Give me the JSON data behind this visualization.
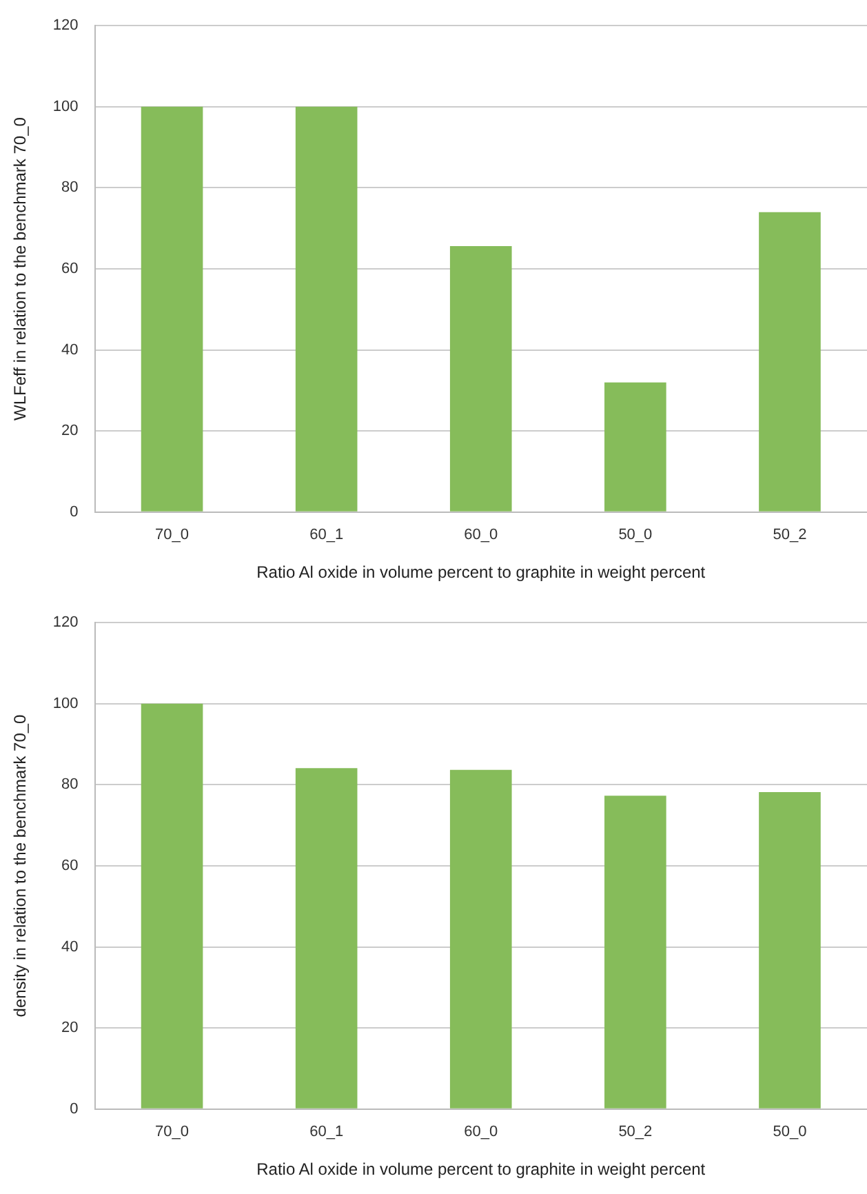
{
  "chart_data": [
    {
      "type": "bar",
      "categories": [
        "70_0",
        "60_1",
        "60_0",
        "50_0",
        "50_2"
      ],
      "values": [
        100,
        100,
        65.6,
        32,
        74
      ],
      "color": "#86bc5a",
      "xlabel": "Ratio Al oxide in volume percent to graphite in weight percent",
      "ylabel": "WLFeff in relation to the benchmark 70_0",
      "ylim": [
        0,
        120
      ],
      "yticks": [
        0,
        20,
        40,
        60,
        80,
        100,
        120
      ],
      "grid": "y",
      "legend": false
    },
    {
      "type": "bar",
      "categories": [
        "70_0",
        "60_1",
        "60_0",
        "50_2",
        "50_0"
      ],
      "values": [
        100,
        84.1,
        83.7,
        77.3,
        78.2
      ],
      "color": "#86bc5a",
      "xlabel": "Ratio Al oxide in volume percent to graphite in weight percent",
      "ylabel": "density in relation to the benchmark 70_0",
      "ylim": [
        0,
        120
      ],
      "yticks": [
        0,
        20,
        40,
        60,
        80,
        100,
        120
      ],
      "grid": "y",
      "legend": false
    }
  ]
}
